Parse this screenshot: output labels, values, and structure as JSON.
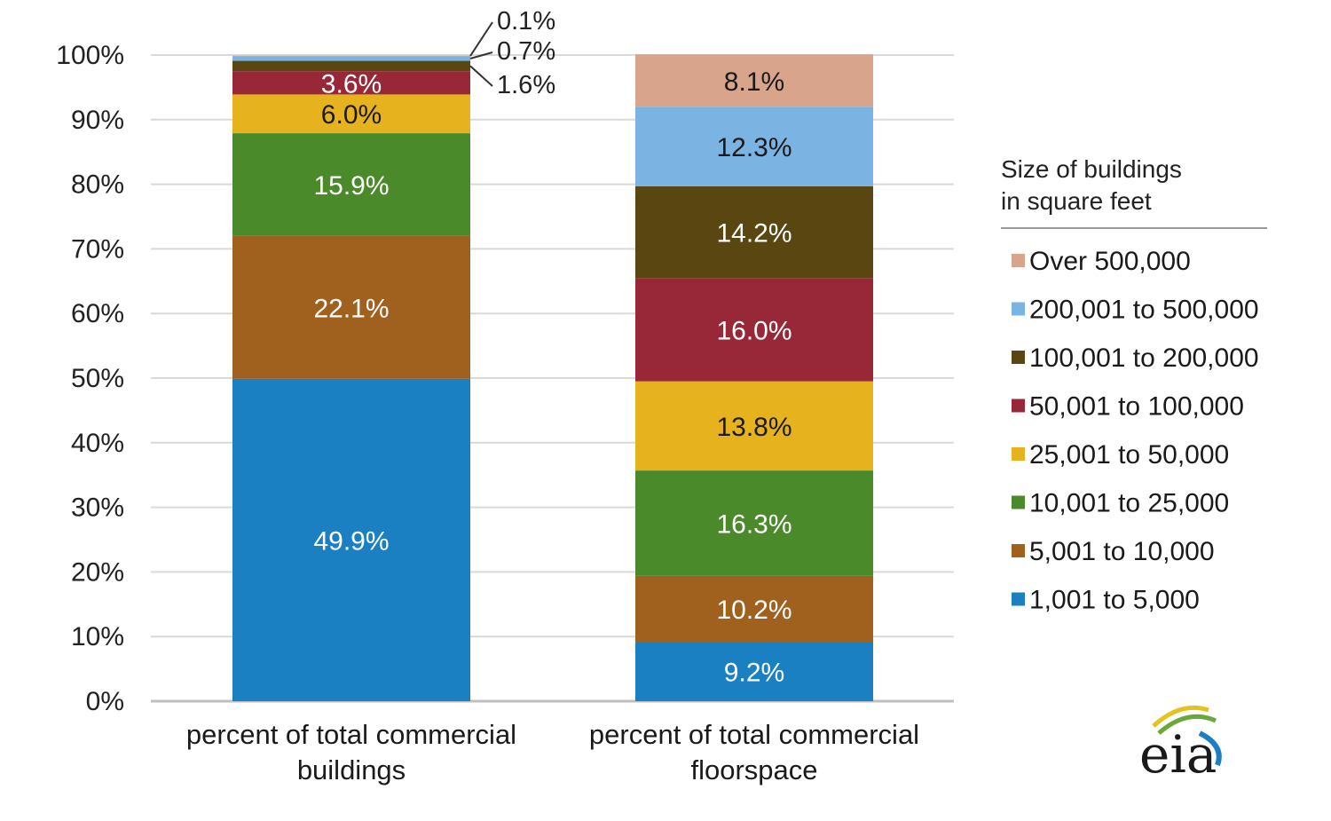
{
  "chart_data": {
    "type": "bar",
    "stacked": true,
    "categories": [
      "percent of total commercial buildings",
      "percent of total commercial floorspace"
    ],
    "category_lines": [
      [
        "percent of total commercial",
        "buildings"
      ],
      [
        "percent of total commercial",
        "floorspace"
      ]
    ],
    "ylim": [
      0,
      100
    ],
    "y_ticks": [
      0,
      10,
      20,
      30,
      40,
      50,
      60,
      70,
      80,
      90,
      100
    ],
    "y_tick_labels": [
      "0%",
      "10%",
      "20%",
      "30%",
      "40%",
      "50%",
      "60%",
      "70%",
      "80%",
      "90%",
      "100%"
    ],
    "grid": true,
    "legend_title_lines": [
      "Size of buildings",
      "in square feet"
    ],
    "legend_position": "right",
    "series": [
      {
        "name": "1,001 to 5,000",
        "color": "#1a80c2",
        "values": [
          49.9,
          9.2
        ],
        "labels": [
          "49.9%",
          "9.2%"
        ],
        "label_color": "#ffffff"
      },
      {
        "name": "5,001 to 10,000",
        "color": "#a0601e",
        "values": [
          22.1,
          10.2
        ],
        "labels": [
          "22.1%",
          "10.2%"
        ],
        "label_color": "#ffffff"
      },
      {
        "name": "10,001 to 25,000",
        "color": "#4a8a2a",
        "values": [
          15.9,
          16.3
        ],
        "labels": [
          "15.9%",
          "16.3%"
        ],
        "label_color": "#ffffff"
      },
      {
        "name": "25,001 to 50,000",
        "color": "#e6b21e",
        "values": [
          6.0,
          13.8
        ],
        "labels": [
          "6.0%",
          "13.8%"
        ],
        "label_color": "#1a1a1a"
      },
      {
        "name": "50,001 to 100,000",
        "color": "#982838",
        "values": [
          3.6,
          16.0
        ],
        "labels": [
          "3.6%",
          "16.0%"
        ],
        "label_color": "#ffffff"
      },
      {
        "name": "100,001 to 200,000",
        "color": "#5a4610",
        "values": [
          1.6,
          14.2
        ],
        "labels": [
          "",
          "14.2%"
        ],
        "label_color": "#ffffff"
      },
      {
        "name": "200,001 to 500,000",
        "color": "#7bb3e2",
        "values": [
          0.7,
          12.3
        ],
        "labels": [
          "",
          "12.3%"
        ],
        "label_color": "#1a1a1a"
      },
      {
        "name": "Over 500,000",
        "color": "#d8a48c",
        "values": [
          0.1,
          8.1
        ],
        "labels": [
          "",
          "8.1%"
        ],
        "label_color": "#1a1a1a"
      }
    ],
    "callouts": [
      "0.1%",
      "0.7%",
      "1.6%"
    ]
  },
  "logo": {
    "text": "eia"
  }
}
